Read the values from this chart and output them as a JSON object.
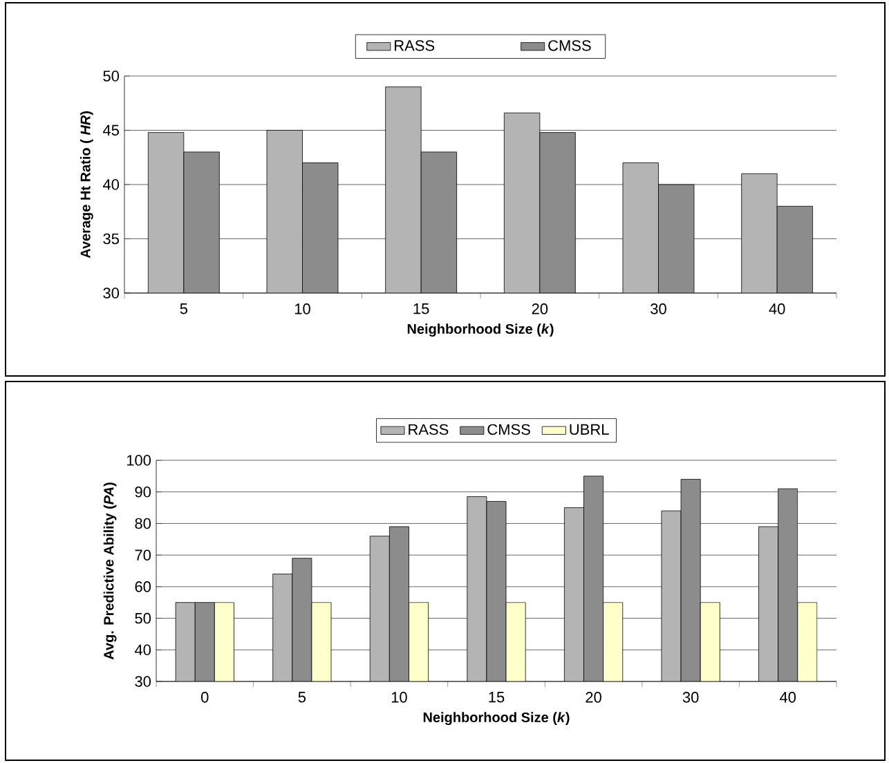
{
  "chart_data": [
    {
      "type": "bar",
      "xlabel": "Neighborhood Size (*k*)",
      "ylabel": "Average Ht Ratio ( *HR*)",
      "categories": [
        "5",
        "10",
        "15",
        "20",
        "30",
        "40"
      ],
      "series": [
        {
          "name": "RASS",
          "color": "#b4b4b4",
          "values": [
            44.8,
            45,
            49,
            46.6,
            42,
            41
          ]
        },
        {
          "name": "CMSS",
          "color": "#8c8c8c",
          "values": [
            43,
            42,
            43,
            44.8,
            40,
            38
          ]
        }
      ],
      "ylim": [
        30,
        50
      ],
      "yticks": [
        30,
        35,
        40,
        45,
        50
      ],
      "grid": "y",
      "legend": "top"
    },
    {
      "type": "bar",
      "xlabel": "Neighborhood Size (*k*)",
      "ylabel": "Avg. Predictive Ability (*PA*)",
      "categories": [
        "0",
        "5",
        "10",
        "15",
        "20",
        "30",
        "40"
      ],
      "series": [
        {
          "name": "RASS",
          "color": "#b4b4b4",
          "values": [
            55,
            64,
            76,
            88.5,
            85,
            84,
            79
          ]
        },
        {
          "name": "CMSS",
          "color": "#8c8c8c",
          "values": [
            55,
            69,
            79,
            87,
            95,
            94,
            91
          ]
        },
        {
          "name": "UBRL",
          "color": "#ffffcc",
          "values": [
            55,
            55,
            55,
            55,
            55,
            55,
            55
          ]
        }
      ],
      "ylim": [
        30,
        100
      ],
      "yticks": [
        30,
        40,
        50,
        60,
        70,
        80,
        90,
        100
      ],
      "grid": "y",
      "legend": "top"
    }
  ]
}
